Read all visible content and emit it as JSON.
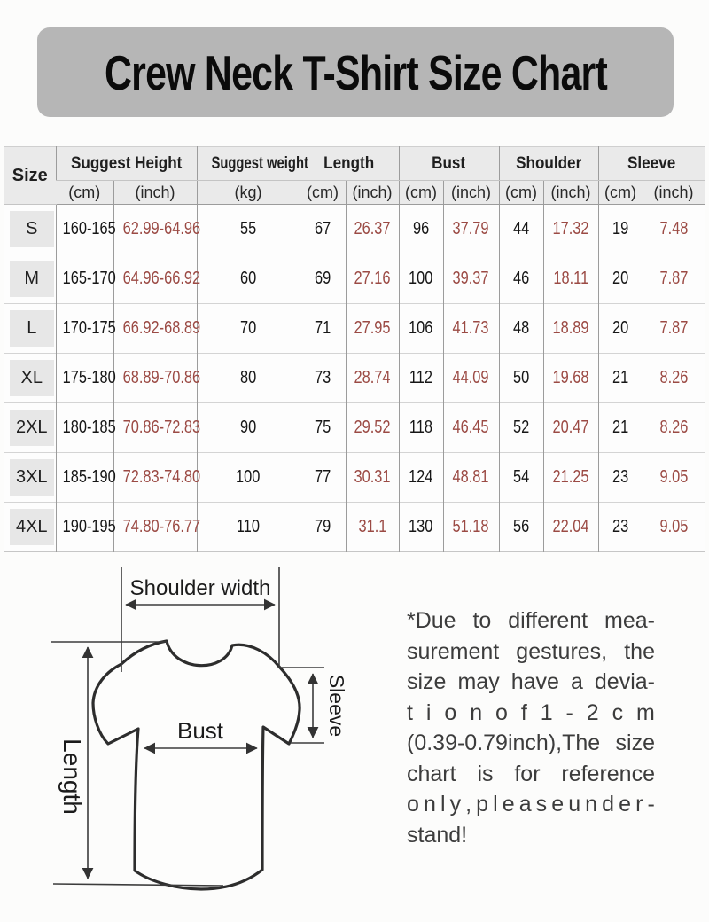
{
  "title": "Crew Neck T-Shirt Size Chart",
  "colors": {
    "banner_bg": "#b6b6b6",
    "title_text": "#0b0b0b",
    "header_bg": "#eaeaea",
    "size_cell_bg": "#e7e7e7",
    "grid_dark": "#9c9c9c",
    "grid_light": "#d4d4d4",
    "inch_header_red": "#b2544e",
    "inch_red": "#9b4a44",
    "ink": "#2d2d2d"
  },
  "table": {
    "header": {
      "size": "Size",
      "groups": [
        {
          "label": "Suggest Height",
          "units": [
            "(cm)",
            "(inch)"
          ]
        },
        {
          "label": "Suggest weight",
          "units": [
            "(kg)"
          ]
        },
        {
          "label": "Length",
          "units": [
            "(cm)",
            "(inch)"
          ]
        },
        {
          "label": "Bust",
          "units": [
            "(cm)",
            "(inch)"
          ]
        },
        {
          "label": "Shoulder",
          "units": [
            "(cm)",
            "(inch)"
          ]
        },
        {
          "label": "Sleeve",
          "units": [
            "(cm)",
            "(inch)"
          ]
        }
      ]
    }
  },
  "chart_data": {
    "type": "table",
    "title": "Crew Neck T-Shirt Size Chart",
    "columns": [
      "Size",
      "Suggest Height (cm)",
      "Suggest Height (inch)",
      "Suggest weight (kg)",
      "Length (cm)",
      "Length (inch)",
      "Bust (cm)",
      "Bust (inch)",
      "Shoulder (cm)",
      "Shoulder (inch)",
      "Sleeve (cm)",
      "Sleeve (inch)"
    ],
    "rows": [
      [
        "S",
        "160-165",
        "62.99-64.96",
        "55",
        "67",
        "26.37",
        "96",
        "37.79",
        "44",
        "17.32",
        "19",
        "7.48"
      ],
      [
        "M",
        "165-170",
        "64.96-66.92",
        "60",
        "69",
        "27.16",
        "100",
        "39.37",
        "46",
        "18.11",
        "20",
        "7.87"
      ],
      [
        "L",
        "170-175",
        "66.92-68.89",
        "70",
        "71",
        "27.95",
        "106",
        "41.73",
        "48",
        "18.89",
        "20",
        "7.87"
      ],
      [
        "XL",
        "175-180",
        "68.89-70.86",
        "80",
        "73",
        "28.74",
        "112",
        "44.09",
        "50",
        "19.68",
        "21",
        "8.26"
      ],
      [
        "2XL",
        "180-185",
        "70.86-72.83",
        "90",
        "75",
        "29.52",
        "118",
        "46.45",
        "52",
        "20.47",
        "21",
        "8.26"
      ],
      [
        "3XL",
        "185-190",
        "72.83-74.80",
        "100",
        "77",
        "30.31",
        "124",
        "48.81",
        "54",
        "21.25",
        "23",
        "9.05"
      ],
      [
        "4XL",
        "190-195",
        "74.80-76.77",
        "110",
        "79",
        "31.1",
        "130",
        "51.18",
        "56",
        "22.04",
        "23",
        "9.05"
      ]
    ]
  },
  "diagram": {
    "shoulder_label": "Shoulder width",
    "length_label": "Length",
    "bust_label": "Bust",
    "sleeve_label": "Sleeve"
  },
  "disclaimer": {
    "lines": [
      "*Due to different mea-",
      "surement gestures, the",
      "size may have a devia-",
      "tion of 1-2cm",
      "(0.39-0.79inch),The size",
      "chart is for reference",
      "only, please under-",
      "stand!"
    ]
  }
}
